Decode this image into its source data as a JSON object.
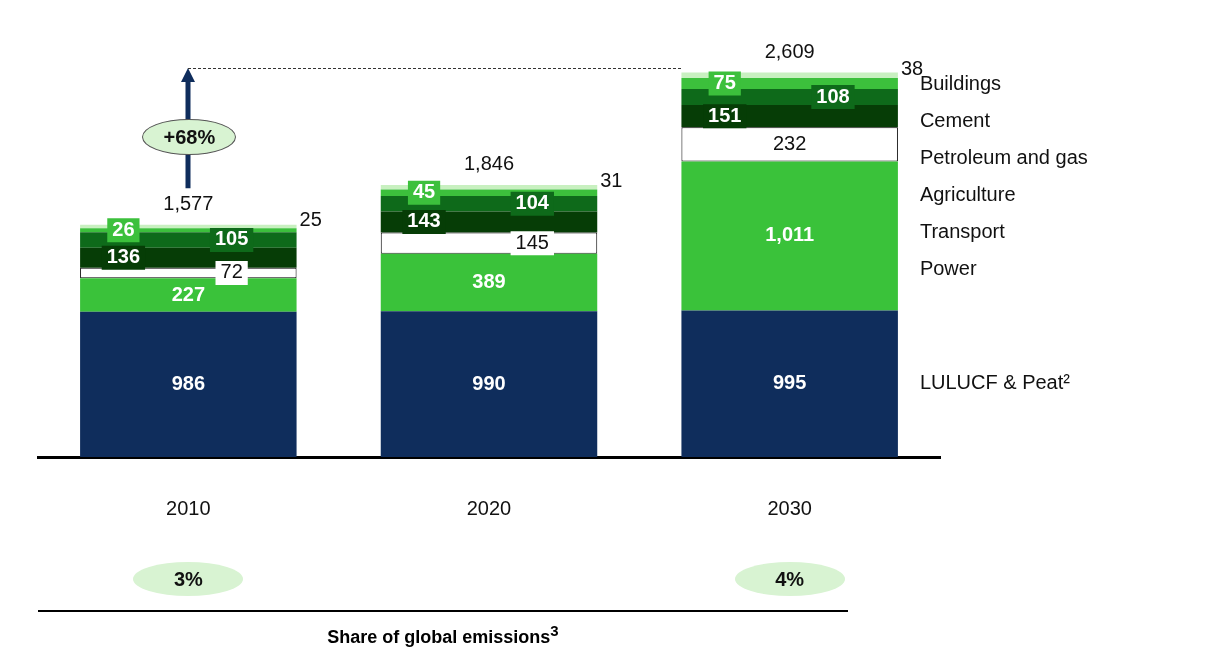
{
  "chart_data": {
    "type": "bar",
    "stacked": true,
    "categories": [
      "2010",
      "2020",
      "2030"
    ],
    "series": [
      {
        "name": "LULUCF & Peat²",
        "color": "#0f2d5c",
        "values": [
          986,
          990,
          995
        ],
        "value_labels": [
          "986",
          "990",
          "995"
        ]
      },
      {
        "name": "Power",
        "color": "#3ac23a",
        "values": [
          227,
          389,
          1011
        ],
        "value_labels": [
          "227",
          "389",
          "1,011"
        ]
      },
      {
        "name": "Transport",
        "color": "#ffffff",
        "values": [
          72,
          145,
          232
        ],
        "value_labels": [
          "72",
          "145",
          "232"
        ]
      },
      {
        "name": "Agriculture",
        "color": "#063d06",
        "values": [
          136,
          143,
          151
        ],
        "value_labels": [
          "136",
          "143",
          "151"
        ]
      },
      {
        "name": "Petroleum and gas",
        "color": "#0e6a1a",
        "values": [
          105,
          104,
          108
        ],
        "value_labels": [
          "105",
          "104",
          "108"
        ]
      },
      {
        "name": "Cement",
        "color": "#3cc03c",
        "values": [
          26,
          45,
          75
        ],
        "value_labels": [
          "26",
          "45",
          "75"
        ]
      },
      {
        "name": "Buildings",
        "color": "#c8f0c0",
        "values": [
          25,
          31,
          38
        ],
        "value_labels": [
          "25",
          "31",
          "38"
        ]
      }
    ],
    "totals": [
      "1,577",
      "1,846",
      "2,609"
    ],
    "annotations": [
      "+68%",
      "3%",
      "4%",
      "Share of global emissions$^{3}$"
    ]
  }
}
